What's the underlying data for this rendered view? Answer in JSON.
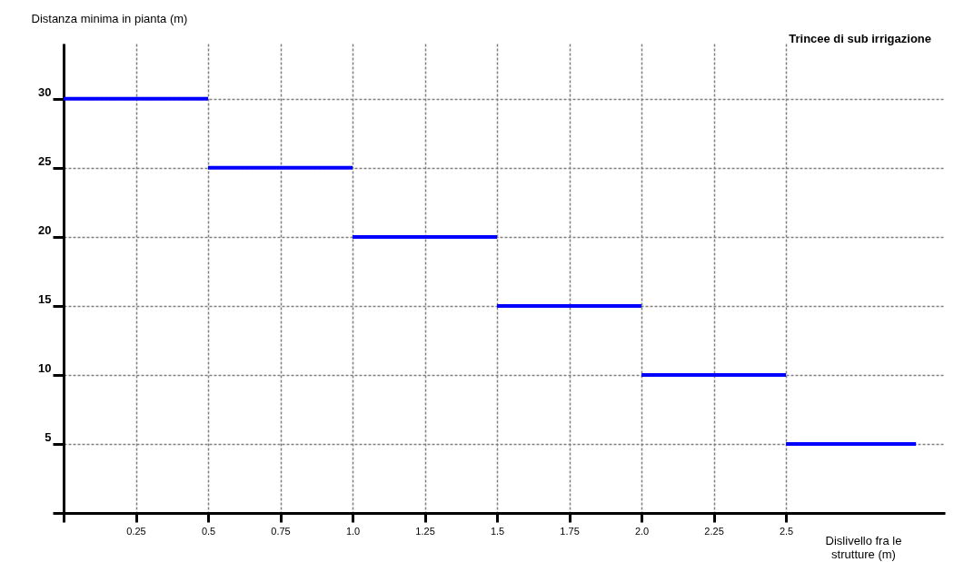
{
  "chart_data": {
    "type": "line",
    "title": "Trincee di sub irrigazione",
    "xlabel": "Dislivello fra le strutture (m)",
    "ylabel": "Distanza minima in pianta (m)",
    "series": [
      {
        "color": "#0000ff",
        "x": [
          0,
          0.5
        ],
        "values": [
          30,
          30
        ]
      },
      {
        "color": "#0000ff",
        "x": [
          0.5,
          1.0
        ],
        "values": [
          25,
          25
        ]
      },
      {
        "color": "#0000ff",
        "x": [
          1.0,
          1.5
        ],
        "values": [
          20,
          20
        ]
      },
      {
        "color": "#0000ff",
        "x": [
          1.5,
          2.0
        ],
        "values": [
          15,
          15
        ]
      },
      {
        "color": "#0000ff",
        "x": [
          2.0,
          2.5
        ],
        "values": [
          10,
          10
        ]
      },
      {
        "color": "#0000ff",
        "x": [
          2.5,
          2.95
        ],
        "values": [
          5,
          5
        ]
      }
    ],
    "xlim": [
      0,
      3.05
    ],
    "ylim": [
      0,
      34
    ],
    "xticks": [
      {
        "value": 0,
        "label": null
      },
      0.25,
      0.5,
      0.75,
      {
        "value": 1,
        "label": "1.0"
      },
      1.25,
      1.5,
      1.75,
      {
        "value": 2,
        "label": "2.0"
      },
      2.25,
      2.5
    ],
    "yticks": [
      {
        "value": 0,
        "label": null
      },
      5,
      10,
      15,
      20,
      25,
      30
    ],
    "grid": true,
    "marker": "none",
    "line_style": "solid",
    "legend": false
  }
}
